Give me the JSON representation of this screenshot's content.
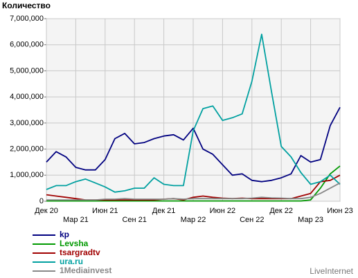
{
  "chart_data": {
    "type": "line",
    "y_label": "Количество",
    "watermark": "LiveInternet",
    "categories": [
      "Дек 20",
      null,
      null,
      "Мар 21",
      null,
      null,
      "Июн 21",
      null,
      null,
      "Сен 21",
      null,
      null,
      "Дек 21",
      null,
      null,
      "Мар 22",
      null,
      null,
      "Июн 22",
      null,
      null,
      "Сен 22",
      null,
      null,
      "Дек 22",
      null,
      null,
      "Мар 23",
      null,
      null,
      "Июн 23"
    ],
    "ylim": [
      0,
      7000000
    ],
    "yticks": [
      0,
      {
        "value": 1000000,
        "label": "1,000,000"
      },
      {
        "value": 2000000,
        "label": "2,000,000"
      },
      {
        "value": 3000000,
        "label": "3,000,000"
      },
      {
        "value": 4000000,
        "label": "4,000,000"
      },
      {
        "value": 5000000,
        "label": "5,000,000"
      },
      {
        "value": 6000000,
        "label": "6,000,000"
      },
      {
        "value": 7000000,
        "label": "7,000,000"
      }
    ],
    "grid": true,
    "series": [
      {
        "name": "kp",
        "color": "#000080",
        "values": [
          1500000,
          1900000,
          1700000,
          1300000,
          1200000,
          1200000,
          1600000,
          2400000,
          2600000,
          2200000,
          2250000,
          2400000,
          2500000,
          2550000,
          2350000,
          2800000,
          2000000,
          1800000,
          1400000,
          1000000,
          1050000,
          800000,
          750000,
          800000,
          900000,
          1050000,
          1750000,
          1500000,
          1600000,
          2900000,
          3600000
        ]
      },
      {
        "name": "Levsha",
        "color": "#009900",
        "values": [
          10000,
          10000,
          10000,
          10000,
          10000,
          10000,
          10000,
          10000,
          10000,
          10000,
          10000,
          10000,
          10000,
          10000,
          10000,
          10000,
          10000,
          10000,
          10000,
          10000,
          10000,
          10000,
          10000,
          10000,
          10000,
          10000,
          10000,
          50000,
          500000,
          1050000,
          1350000
        ]
      },
      {
        "name": "tsargradtv",
        "color": "#a00000",
        "values": [
          250000,
          200000,
          150000,
          100000,
          50000,
          50000,
          50000,
          50000,
          50000,
          50000,
          50000,
          50000,
          80000,
          100000,
          50000,
          150000,
          200000,
          150000,
          120000,
          100000,
          120000,
          100000,
          100000,
          100000,
          100000,
          100000,
          200000,
          300000,
          750000,
          800000,
          1000000
        ]
      },
      {
        "name": "ura.ru",
        "color": "#00a0a0",
        "values": [
          450000,
          600000,
          600000,
          750000,
          850000,
          700000,
          550000,
          350000,
          400000,
          500000,
          500000,
          900000,
          650000,
          600000,
          600000,
          2700000,
          3550000,
          3650000,
          3100000,
          3200000,
          3350000,
          4600000,
          6400000,
          4200000,
          2100000,
          1700000,
          1100000,
          650000,
          750000,
          1000000,
          650000
        ]
      },
      {
        "name": "1Mediainvest",
        "color": "#888888",
        "values": [
          50000,
          50000,
          50000,
          50000,
          50000,
          50000,
          80000,
          80000,
          100000,
          80000,
          80000,
          80000,
          80000,
          100000,
          80000,
          100000,
          100000,
          100000,
          100000,
          100000,
          100000,
          120000,
          150000,
          130000,
          120000,
          100000,
          100000,
          150000,
          300000,
          500000,
          700000
        ]
      }
    ]
  }
}
